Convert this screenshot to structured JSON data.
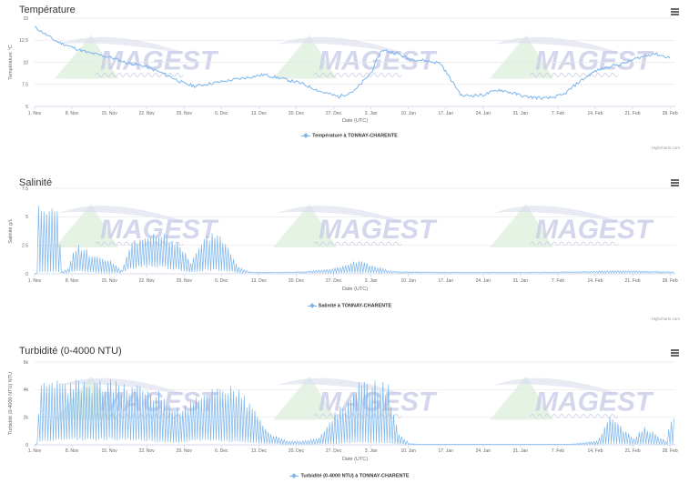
{
  "x_axis": {
    "title": "Date (UTC)",
    "tick_labels": [
      "1. Nov",
      "8. Nov",
      "15. Nov",
      "22. Nov",
      "29. Nov",
      "6. Dec",
      "13. Dec",
      "20. Dec",
      "27. Dec",
      "3. Jan",
      "10. Jan",
      "17. Jan",
      "24. Jan",
      "31. Jan",
      "7. Feb",
      "14. Feb",
      "21. Feb",
      "28. Feb"
    ]
  },
  "watermark": {
    "text": "MAGEST"
  },
  "credits": "Highcharts.com",
  "series_color": "#7cb5ec",
  "icons": {
    "menu": "hamburger-menu-icon",
    "legend_symbol": "diamond-line-marker-icon"
  },
  "charts": [
    {
      "title": "Température",
      "legend": "Température à TONNAY-CHARENTE",
      "credits": "Highcharts.com"
    },
    {
      "title": "Salinité",
      "legend": "Salinité à TONNAY-CHARENTE",
      "credits": "Highcharts.com"
    },
    {
      "title": "Turbidité (0-4000 NTU)",
      "legend": "Turbidité (0-4000 NTU) à TONNAY-CHARENTE",
      "credits": ""
    }
  ],
  "chart_data": [
    {
      "type": "line",
      "title": "Température",
      "xlabel": "Date (UTC)",
      "ylabel": "Température °C",
      "x_range": [
        "1. Nov",
        "1. Mar"
      ],
      "ylim": [
        5,
        15
      ],
      "y_tick_labels": [
        "5",
        "7.5",
        "10",
        "12.5",
        "15"
      ],
      "y_tick_values": [
        5,
        7.5,
        10,
        12.5,
        15
      ],
      "grid": "horizontal",
      "legend_position": "bottom-center",
      "series": [
        {
          "name": "Température à TONNAY-CHARENTE",
          "x_days": [
            0,
            2,
            4,
            7,
            10,
            14,
            17,
            21,
            25,
            28,
            30,
            35,
            40,
            43,
            46,
            50,
            54,
            57,
            60,
            63,
            65,
            68,
            70,
            73,
            76,
            78,
            80,
            84,
            87,
            89,
            92,
            96,
            99,
            102,
            105,
            108,
            110,
            113,
            116,
            119
          ],
          "values": [
            14,
            13.2,
            12.4,
            11.7,
            11.1,
            10.6,
            10,
            9.5,
            8.5,
            7.6,
            7.3,
            7.8,
            8.3,
            8.6,
            8.2,
            7.6,
            6.6,
            6.1,
            6.8,
            8.8,
            11.4,
            11.0,
            10.4,
            10.2,
            9.9,
            8.0,
            6.2,
            6.3,
            6.9,
            6.6,
            6.1,
            5.9,
            6.3,
            7.8,
            9.0,
            9.6,
            9.8,
            10.5,
            11.0,
            10.5
          ]
        }
      ]
    },
    {
      "type": "line",
      "title": "Salinité",
      "xlabel": "Date (UTC)",
      "ylabel": "Salinité g/L",
      "x_range": [
        "1. Nov",
        "1. Mar"
      ],
      "ylim": [
        0,
        7.5
      ],
      "y_tick_labels": [
        "0",
        "2.5",
        "5",
        "7.5"
      ],
      "y_tick_values": [
        0,
        2.5,
        5,
        7.5
      ],
      "grid": "horizontal",
      "legend_position": "bottom-center",
      "series": [
        {
          "name": "Salinité à TONNAY-CHARENTE",
          "oscillation": "tidal, about 2 cycles per day",
          "envelope_x_days": [
            0,
            0.5,
            3,
            4,
            5,
            6,
            7,
            8,
            10,
            12,
            14,
            16,
            18,
            20,
            22,
            23,
            25,
            27,
            29,
            30,
            32,
            34,
            36,
            38,
            40,
            42,
            44,
            50,
            56,
            58,
            60,
            62,
            64,
            66,
            68,
            70,
            80,
            90,
            100,
            110,
            119
          ],
          "envelope_max": [
            0,
            6.2,
            6.0,
            5.8,
            0.2,
            0.5,
            2.0,
            2.7,
            2.0,
            1.5,
            1.2,
            0.3,
            3.0,
            3.5,
            3.7,
            3.6,
            3.4,
            2.8,
            1.0,
            2.0,
            3.5,
            4.0,
            2.5,
            0.6,
            0.2,
            0.15,
            0.15,
            0.2,
            0.5,
            0.8,
            1.2,
            1.0,
            0.6,
            0.3,
            0.2,
            0.2,
            0.15,
            0.15,
            0.2,
            0.3,
            0.2
          ],
          "envelope_min": [
            0,
            0.2,
            0.2,
            0.2,
            0.1,
            0.1,
            0.2,
            0.3,
            0.2,
            0.1,
            0.1,
            0.1,
            0.5,
            0.8,
            0.8,
            0.8,
            0.6,
            0.4,
            0.2,
            0.2,
            0.4,
            0.4,
            0.3,
            0.1,
            0.1,
            0.1,
            0.1,
            0.1,
            0.1,
            0.1,
            0.1,
            0.1,
            0.1,
            0.1,
            0.1,
            0.1,
            0.1,
            0.1,
            0.1,
            0.1,
            0.1
          ]
        }
      ]
    },
    {
      "type": "line",
      "title": "Turbidité (0-4000 NTU)",
      "xlabel": "Date (UTC)",
      "ylabel": "Turbidité (0-4000 NTU) NTU",
      "x_range": [
        "1. Nov",
        "1. Mar"
      ],
      "ylim": [
        0,
        6000
      ],
      "y_tick_labels": [
        "0",
        "2k",
        "4k",
        "6k"
      ],
      "y_tick_values": [
        0,
        2000,
        4000,
        6000
      ],
      "grid": "horizontal",
      "legend_position": "bottom-center",
      "series": [
        {
          "name": "Turbidité (0-4000 NTU) à TONNAY-CHARENTE",
          "oscillation": "tidal, about 2 cycles per day",
          "envelope_x_days": [
            0,
            1,
            4,
            8,
            12,
            16,
            20,
            24,
            26,
            28,
            30,
            34,
            37,
            40,
            44,
            47,
            50,
            53,
            56,
            58,
            60,
            62,
            64,
            66,
            68,
            70,
            72,
            80,
            90,
            100,
            105,
            108,
            110,
            112,
            114,
            118,
            119
          ],
          "envelope_max": [
            0,
            4500,
            4700,
            4800,
            4800,
            4700,
            4500,
            3800,
            2800,
            3000,
            3500,
            4600,
            4600,
            3200,
            800,
            300,
            300,
            500,
            2400,
            3300,
            4500,
            4700,
            4700,
            4500,
            800,
            100,
            60,
            40,
            40,
            40,
            300,
            2400,
            1200,
            500,
            1400,
            300,
            2100
          ],
          "envelope_min": [
            0,
            300,
            400,
            500,
            500,
            500,
            400,
            300,
            200,
            300,
            400,
            400,
            300,
            200,
            100,
            60,
            50,
            60,
            100,
            150,
            200,
            200,
            200,
            150,
            80,
            30,
            20,
            20,
            20,
            20,
            30,
            100,
            80,
            50,
            60,
            30,
            40
          ]
        }
      ]
    }
  ]
}
